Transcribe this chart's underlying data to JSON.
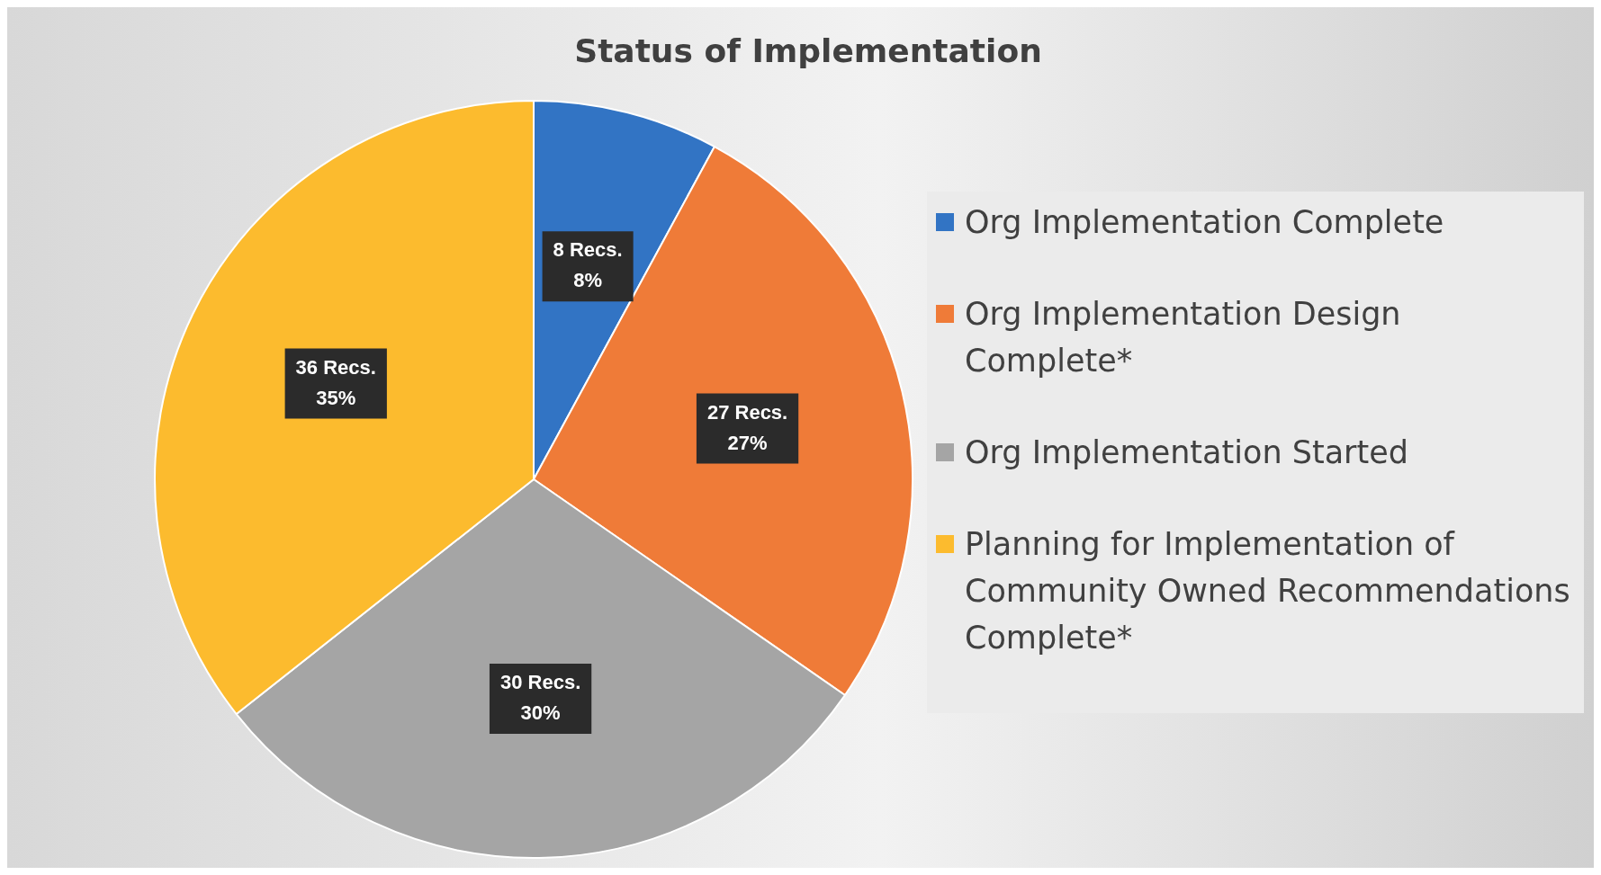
{
  "chart_data": {
    "type": "pie",
    "title": "Status of Implementation",
    "categories": [
      "Org Implementation Complete",
      "Org Implementation Design Complete*",
      "Org Implementation Started",
      "Planning for Implementation of Community Owned Recommendations Complete*"
    ],
    "values": [
      8,
      27,
      30,
      36
    ],
    "colors": [
      "#3274c4",
      "#ef7b38",
      "#a5a5a5",
      "#fcbb2e"
    ],
    "value_labels": [
      "8 Recs.\n8%",
      "27 Recs.\n27%",
      "30 Recs.\n30%",
      "36 Recs.\n35%"
    ],
    "legend": "right"
  }
}
